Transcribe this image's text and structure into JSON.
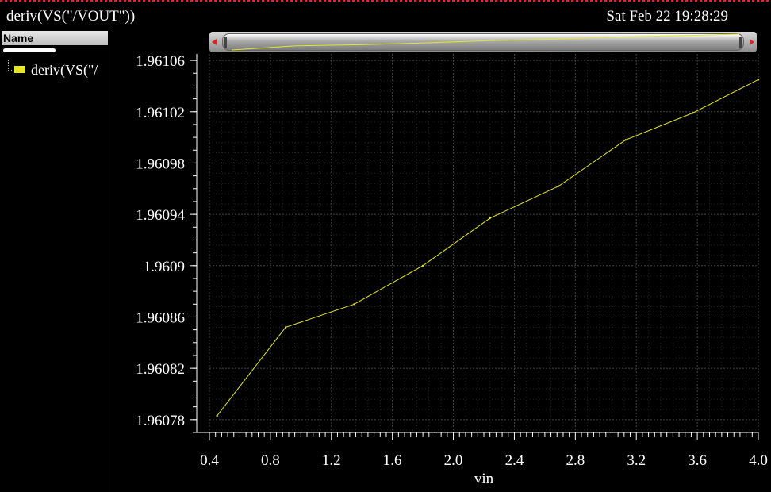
{
  "window": {
    "title": "deriv(VS(\"/VOUT\"))",
    "timestamp": "Sat Feb 22 19:28:29"
  },
  "legend": {
    "header": "Name",
    "entries": [
      {
        "label": "deriv(VS(\"/",
        "color": "#e6e62a"
      }
    ]
  },
  "colors": {
    "background": "#000000",
    "trace": "#e6e62a",
    "grid": "#3a3a3a",
    "axis_text": "#ffffff",
    "top_border": "#d8283c"
  },
  "chart_data": {
    "type": "line",
    "xlabel": "vin",
    "ylabel": "",
    "xlim": [
      0.4,
      4.0
    ],
    "ylim": [
      1.96077,
      1.961065
    ],
    "xticks": [
      0.4,
      0.8,
      1.2,
      1.6,
      2.0,
      2.4,
      2.8,
      3.2,
      3.6,
      4.0
    ],
    "xtick_labels": [
      "0.4",
      "0.8",
      "1.2",
      "1.6",
      "2.0",
      "2.4",
      "2.8",
      "3.2",
      "3.6",
      "4.0"
    ],
    "yticks": [
      1.96078,
      1.96082,
      1.96086,
      1.9609,
      1.96094,
      1.96098,
      1.96102,
      1.96106
    ],
    "ytick_labels": [
      "1.96078",
      "1.96082",
      "1.96086",
      "1.9609",
      "1.96094",
      "1.96098",
      "1.96102",
      "1.96106"
    ],
    "grid": true,
    "series": [
      {
        "name": "deriv(VS(\"/VOUT\"))",
        "color": "#e6e62a",
        "x": [
          0.45,
          0.9,
          1.35,
          1.8,
          2.24,
          2.69,
          3.13,
          3.57,
          4.0
        ],
        "y": [
          1.960783,
          1.960852,
          1.96087,
          1.9609,
          1.960937,
          1.960962,
          1.960998,
          1.961019,
          1.961045
        ]
      }
    ]
  }
}
